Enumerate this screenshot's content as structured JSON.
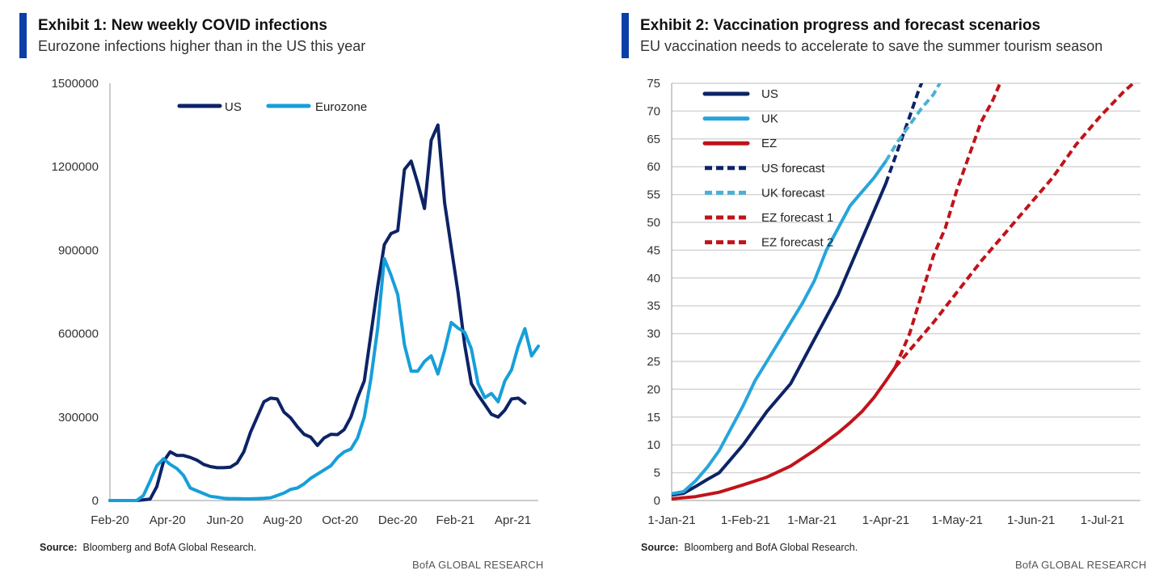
{
  "branding": "BofA GLOBAL RESEARCH",
  "colors": {
    "accent": "#0a3fa8",
    "us": "#0d2366",
    "eurozone": "#169fd9",
    "uk": "#26a5dc",
    "ez": "#c0131b",
    "uk_forecast": "#4bb0d4",
    "gridline": "#d4d4d4"
  },
  "chart_data": [
    {
      "type": "line",
      "title": "Exhibit 1: New weekly COVID infections",
      "subtitle": "Eurozone infections higher than in the US this year",
      "source_label": "Source:",
      "source_text": "Bloomberg and BofA Global Research.",
      "xlabel": "",
      "ylabel": "",
      "x_ticks": [
        "Feb-20",
        "Apr-20",
        "Jun-20",
        "Aug-20",
        "Oct-20",
        "Dec-20",
        "Feb-21",
        "Apr-21"
      ],
      "ylim": [
        0,
        1500000
      ],
      "y_ticks": [
        "0",
        "300000",
        "600000",
        "900000",
        "1200000",
        "1500000"
      ],
      "grid": false,
      "legend_position": "top",
      "x_weeks": "week index from 1-Feb-20 (0..62)",
      "series": [
        {
          "name": "US",
          "points": [
            [
              0,
              0
            ],
            [
              2,
              0
            ],
            [
              4,
              0
            ],
            [
              6,
              5000
            ],
            [
              7,
              50000
            ],
            [
              8,
              140000
            ],
            [
              9,
              175000
            ],
            [
              10,
              162000
            ],
            [
              11,
              162000
            ],
            [
              12,
              155000
            ],
            [
              13,
              145000
            ],
            [
              14,
              130000
            ],
            [
              15,
              122000
            ],
            [
              16,
              118000
            ],
            [
              17,
              118000
            ],
            [
              18,
              120000
            ],
            [
              19,
              135000
            ],
            [
              20,
              175000
            ],
            [
              21,
              245000
            ],
            [
              22,
              300000
            ],
            [
              23,
              355000
            ],
            [
              24,
              368000
            ],
            [
              25,
              365000
            ],
            [
              26,
              318000
            ],
            [
              27,
              297000
            ],
            [
              28,
              265000
            ],
            [
              29,
              238000
            ],
            [
              30,
              228000
            ],
            [
              31,
              198000
            ],
            [
              32,
              225000
            ],
            [
              33,
              238000
            ],
            [
              34,
              237000
            ],
            [
              35,
              255000
            ],
            [
              36,
              300000
            ],
            [
              37,
              370000
            ],
            [
              38,
              430000
            ],
            [
              39,
              600000
            ],
            [
              40,
              770000
            ],
            [
              41,
              920000
            ],
            [
              42,
              960000
            ],
            [
              43,
              970000
            ],
            [
              44,
              1190000
            ],
            [
              45,
              1220000
            ],
            [
              46,
              1140000
            ],
            [
              47,
              1050000
            ],
            [
              48,
              1295000
            ],
            [
              49,
              1350000
            ],
            [
              50,
              1070000
            ],
            [
              51,
              910000
            ],
            [
              52,
              750000
            ],
            [
              53,
              560000
            ],
            [
              54,
              420000
            ],
            [
              55,
              380000
            ],
            [
              56,
              345000
            ],
            [
              57,
              310000
            ],
            [
              58,
              300000
            ],
            [
              59,
              325000
            ],
            [
              60,
              365000
            ],
            [
              61,
              368000
            ],
            [
              62,
              350000
            ]
          ]
        },
        {
          "name": "Eurozone",
          "points": [
            [
              0,
              0
            ],
            [
              4,
              0
            ],
            [
              5,
              18000
            ],
            [
              6,
              70000
            ],
            [
              7,
              125000
            ],
            [
              8,
              150000
            ],
            [
              9,
              130000
            ],
            [
              10,
              115000
            ],
            [
              11,
              90000
            ],
            [
              12,
              45000
            ],
            [
              13,
              35000
            ],
            [
              14,
              25000
            ],
            [
              15,
              15000
            ],
            [
              16,
              12000
            ],
            [
              17,
              8000
            ],
            [
              18,
              7000
            ],
            [
              19,
              7000
            ],
            [
              20,
              6000
            ],
            [
              21,
              6000
            ],
            [
              22,
              7000
            ],
            [
              23,
              8000
            ],
            [
              24,
              10000
            ],
            [
              25,
              18000
            ],
            [
              26,
              27000
            ],
            [
              27,
              40000
            ],
            [
              28,
              45000
            ],
            [
              29,
              60000
            ],
            [
              30,
              80000
            ],
            [
              31,
              95000
            ],
            [
              32,
              110000
            ],
            [
              33,
              125000
            ],
            [
              34,
              155000
            ],
            [
              35,
              175000
            ],
            [
              36,
              185000
            ],
            [
              37,
              225000
            ],
            [
              38,
              300000
            ],
            [
              39,
              440000
            ],
            [
              40,
              620000
            ],
            [
              41,
              870000
            ],
            [
              42,
              810000
            ],
            [
              43,
              740000
            ],
            [
              44,
              560000
            ],
            [
              45,
              465000
            ],
            [
              46,
              465000
            ],
            [
              47,
              500000
            ],
            [
              48,
              520000
            ],
            [
              49,
              455000
            ],
            [
              50,
              540000
            ],
            [
              51,
              640000
            ],
            [
              52,
              620000
            ],
            [
              53,
              605000
            ],
            [
              54,
              545000
            ],
            [
              55,
              420000
            ],
            [
              56,
              370000
            ],
            [
              57,
              385000
            ],
            [
              58,
              355000
            ],
            [
              59,
              430000
            ],
            [
              60,
              470000
            ],
            [
              61,
              555000
            ],
            [
              62,
              618000
            ],
            [
              63,
              520000
            ],
            [
              64,
              555000
            ]
          ]
        }
      ]
    },
    {
      "type": "line",
      "title": "Exhibit 2: Vaccination progress and forecast scenarios",
      "subtitle": "EU vaccination needs to accelerate to save the summer tourism season",
      "source_label": "Source:",
      "source_text": "Bloomberg and BofA Global Research.",
      "xlabel": "",
      "ylabel": "",
      "x_ticks": [
        "1-Jan-21",
        "1-Feb-21",
        "1-Mar-21",
        "1-Apr-21",
        "1-May-21",
        "1-Jun-21",
        "1-Jul-21"
      ],
      "ylim": [
        0,
        75
      ],
      "y_ticks": [
        "0",
        "5",
        "10",
        "15",
        "20",
        "25",
        "30",
        "35",
        "40",
        "45",
        "50",
        "55",
        "60",
        "65",
        "70",
        "75"
      ],
      "grid": true,
      "legend_position": "top-left",
      "x_days": "days since 1-Jan-21",
      "series": [
        {
          "name": "US",
          "style": "solid",
          "points": [
            [
              0,
              1
            ],
            [
              5,
              1.3
            ],
            [
              10,
              2.5
            ],
            [
              15,
              3.8
            ],
            [
              20,
              5
            ],
            [
              25,
              7.5
            ],
            [
              30,
              10
            ],
            [
              35,
              13
            ],
            [
              40,
              16
            ],
            [
              45,
              18.5
            ],
            [
              50,
              21
            ],
            [
              55,
              25
            ],
            [
              60,
              29
            ],
            [
              65,
              33
            ],
            [
              70,
              37
            ],
            [
              75,
              42
            ],
            [
              80,
              47
            ],
            [
              85,
              52
            ],
            [
              88,
              55
            ],
            [
              90,
              57
            ]
          ]
        },
        {
          "name": "UK",
          "style": "solid",
          "points": [
            [
              0,
              1.2
            ],
            [
              5,
              1.6
            ],
            [
              10,
              3.5
            ],
            [
              15,
              6
            ],
            [
              20,
              9
            ],
            [
              25,
              13
            ],
            [
              30,
              17
            ],
            [
              35,
              21.5
            ],
            [
              40,
              25
            ],
            [
              45,
              28.5
            ],
            [
              50,
              32
            ],
            [
              55,
              35.5
            ],
            [
              60,
              39.5
            ],
            [
              65,
              45
            ],
            [
              70,
              49
            ],
            [
              75,
              53
            ],
            [
              80,
              55.5
            ],
            [
              85,
              58
            ],
            [
              90,
              61
            ]
          ]
        },
        {
          "name": "EZ",
          "style": "solid",
          "points": [
            [
              0,
              0.3
            ],
            [
              10,
              0.7
            ],
            [
              20,
              1.5
            ],
            [
              30,
              2.8
            ],
            [
              40,
              4.2
            ],
            [
              50,
              6.2
            ],
            [
              60,
              9
            ],
            [
              70,
              12.2
            ],
            [
              75,
              14
            ],
            [
              80,
              16
            ],
            [
              85,
              18.5
            ],
            [
              90,
              21.5
            ],
            [
              94,
              24
            ]
          ]
        },
        {
          "name": "US forecast",
          "style": "dashed",
          "points": [
            [
              90,
              57
            ],
            [
              95,
              63
            ],
            [
              100,
              69
            ],
            [
              104,
              74
            ],
            [
              106,
              76
            ]
          ]
        },
        {
          "name": "UK forecast",
          "style": "dashed",
          "points": [
            [
              90,
              61
            ],
            [
              95,
              64.5
            ],
            [
              100,
              67.5
            ],
            [
              105,
              70.5
            ],
            [
              110,
              73
            ],
            [
              114,
              76
            ]
          ]
        },
        {
          "name": "EZ forecast 1",
          "style": "dashed",
          "points": [
            [
              94,
              24
            ],
            [
              100,
              30
            ],
            [
              105,
              37
            ],
            [
              110,
              44
            ],
            [
              115,
              49
            ],
            [
              120,
              56
            ],
            [
              125,
              62
            ],
            [
              130,
              68
            ],
            [
              135,
              72
            ],
            [
              139,
              76
            ]
          ]
        },
        {
          "name": "EZ forecast 2",
          "style": "dashed",
          "points": [
            [
              94,
              24
            ],
            [
              100,
              27
            ],
            [
              110,
              32
            ],
            [
              120,
              37.5
            ],
            [
              130,
              43
            ],
            [
              140,
              48
            ],
            [
              150,
              53
            ],
            [
              160,
              58
            ],
            [
              170,
              64
            ],
            [
              180,
              69
            ],
            [
              190,
              73.5
            ],
            [
              194,
              75
            ]
          ]
        }
      ]
    }
  ]
}
